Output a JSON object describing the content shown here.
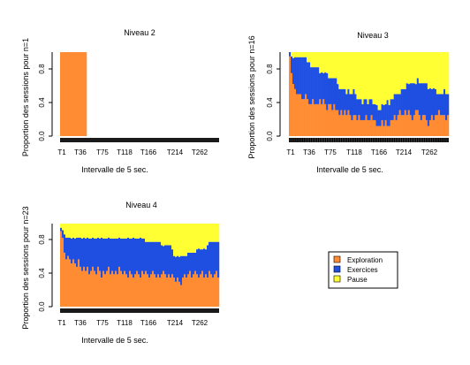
{
  "colors": {
    "exploration": "#FF8C33",
    "exercices": "#1F4FE0",
    "pause": "#FFFF33",
    "ticks": "#000000"
  },
  "legend": {
    "placement": "right-of-panel-4",
    "items": [
      {
        "label": "Exploration",
        "color": "#FF8C33"
      },
      {
        "label": "Exercices",
        "color": "#1F4FE0"
      },
      {
        "label": "Pause",
        "color": "#FFFF33"
      }
    ]
  },
  "chart_data": [
    {
      "type": "area",
      "title": "Niveau 2",
      "xlabel": "Intervalle de 5 sec.",
      "ylabel": "Proportion des sessions pour n=1",
      "xtick_labels": [
        "T1",
        "T36",
        "T75",
        "T118",
        "T166",
        "T214",
        "T262"
      ],
      "ytick_labels": [
        "0.0",
        "0.4",
        "0.8"
      ],
      "ylim": [
        0,
        1
      ],
      "n_intervals": 90,
      "series": [
        {
          "name": "Exploration",
          "values": [
            1,
            1,
            1,
            1,
            1,
            1,
            1,
            1,
            1,
            1,
            1,
            1,
            1,
            1,
            1,
            0,
            0,
            0,
            0,
            0,
            0,
            0,
            0,
            0,
            0,
            0,
            0,
            0,
            0,
            0,
            0,
            0,
            0,
            0,
            0,
            0,
            0,
            0,
            0,
            0,
            0,
            0,
            0,
            0,
            0,
            0,
            0,
            0,
            0,
            0,
            0,
            0,
            0,
            0,
            0,
            0,
            0,
            0,
            0,
            0,
            0,
            0,
            0,
            0,
            0,
            0,
            0,
            0,
            0,
            0,
            0,
            0,
            0,
            0,
            0,
            0,
            0,
            0,
            0,
            0,
            0,
            0,
            0,
            0,
            0,
            0,
            0,
            0,
            0,
            0
          ]
        },
        {
          "name": "Exercices",
          "values": [
            0,
            0,
            0,
            0,
            0,
            0,
            0,
            0,
            0,
            0,
            0,
            0,
            0,
            0,
            0,
            0,
            0,
            0,
            0,
            0,
            0,
            0,
            0,
            0,
            0,
            0,
            0,
            0,
            0,
            0,
            0,
            0,
            0,
            0,
            0,
            0,
            0,
            0,
            0,
            0,
            0,
            0,
            0,
            0,
            0,
            0,
            0,
            0,
            0,
            0,
            0,
            0,
            0,
            0,
            0,
            0,
            0,
            0,
            0,
            0,
            0,
            0,
            0,
            0,
            0,
            0,
            0,
            0,
            0,
            0,
            0,
            0,
            0,
            0,
            0,
            0,
            0,
            0,
            0,
            0,
            0,
            0,
            0,
            0,
            0,
            0,
            0,
            0,
            0,
            0
          ]
        },
        {
          "name": "Pause",
          "values": [
            0,
            0,
            0,
            0,
            0,
            0,
            0,
            0,
            0,
            0,
            0,
            0,
            0,
            0,
            0,
            0,
            0,
            0,
            0,
            0,
            0,
            0,
            0,
            0,
            0,
            0,
            0,
            0,
            0,
            0,
            0,
            0,
            0,
            0,
            0,
            0,
            0,
            0,
            0,
            0,
            0,
            0,
            0,
            0,
            0,
            0,
            0,
            0,
            0,
            0,
            0,
            0,
            0,
            0,
            0,
            0,
            0,
            0,
            0,
            0,
            0,
            0,
            0,
            0,
            0,
            0,
            0,
            0,
            0,
            0,
            0,
            0,
            0,
            0,
            0,
            0,
            0,
            0,
            0,
            0,
            0,
            0,
            0,
            0,
            0,
            0,
            0,
            0,
            0,
            0
          ]
        }
      ]
    },
    {
      "type": "area",
      "title": "Niveau 3",
      "xlabel": "Intervalle de 5 sec.",
      "ylabel": "Proportion des sessions pour n=16",
      "xtick_labels": [
        "T1",
        "T36",
        "T75",
        "T118",
        "T166",
        "T214",
        "T262"
      ],
      "ytick_labels": [
        "0.0",
        "0.4",
        "0.8"
      ],
      "ylim": [
        0,
        1
      ],
      "n_intervals": 90,
      "series": [
        {
          "name": "Exploration",
          "values": [
            0.95,
            0.75,
            0.62,
            0.56,
            0.5,
            0.5,
            0.5,
            0.44,
            0.44,
            0.5,
            0.44,
            0.38,
            0.38,
            0.44,
            0.38,
            0.38,
            0.38,
            0.44,
            0.38,
            0.44,
            0.38,
            0.31,
            0.38,
            0.38,
            0.31,
            0.38,
            0.31,
            0.31,
            0.25,
            0.31,
            0.25,
            0.31,
            0.25,
            0.31,
            0.25,
            0.19,
            0.25,
            0.25,
            0.19,
            0.25,
            0.19,
            0.19,
            0.19,
            0.25,
            0.19,
            0.19,
            0.25,
            0.19,
            0.19,
            0.12,
            0.12,
            0.12,
            0.19,
            0.12,
            0.19,
            0.12,
            0.12,
            0.19,
            0.19,
            0.25,
            0.19,
            0.25,
            0.31,
            0.25,
            0.25,
            0.31,
            0.25,
            0.31,
            0.25,
            0.19,
            0.25,
            0.31,
            0.31,
            0.25,
            0.19,
            0.25,
            0.25,
            0.19,
            0.12,
            0.19,
            0.25,
            0.19,
            0.25,
            0.25,
            0.31,
            0.25,
            0.25,
            0.25,
            0.19,
            0.25
          ]
        },
        {
          "name": "Exercices",
          "values": [
            0.05,
            0.2,
            0.31,
            0.38,
            0.44,
            0.44,
            0.44,
            0.5,
            0.5,
            0.44,
            0.44,
            0.5,
            0.44,
            0.38,
            0.44,
            0.44,
            0.44,
            0.31,
            0.38,
            0.31,
            0.38,
            0.44,
            0.31,
            0.31,
            0.38,
            0.31,
            0.38,
            0.31,
            0.31,
            0.25,
            0.31,
            0.25,
            0.25,
            0.25,
            0.25,
            0.31,
            0.31,
            0.25,
            0.25,
            0.19,
            0.25,
            0.19,
            0.25,
            0.19,
            0.19,
            0.25,
            0.19,
            0.19,
            0.19,
            0.25,
            0.19,
            0.19,
            0.19,
            0.25,
            0.19,
            0.31,
            0.25,
            0.25,
            0.25,
            0.25,
            0.31,
            0.25,
            0.19,
            0.31,
            0.31,
            0.25,
            0.38,
            0.31,
            0.38,
            0.44,
            0.38,
            0.31,
            0.38,
            0.38,
            0.44,
            0.38,
            0.38,
            0.44,
            0.44,
            0.38,
            0.31,
            0.38,
            0.31,
            0.25,
            0.19,
            0.25,
            0.25,
            0.31,
            0.31,
            0.25
          ]
        },
        {
          "name": "Pause",
          "values": [
            0,
            0.05,
            0.07,
            0.06,
            0.06,
            0.06,
            0.06,
            0.06,
            0.06,
            0.06,
            0.12,
            0.12,
            0.18,
            0.18,
            0.18,
            0.18,
            0.18,
            0.25,
            0.24,
            0.25,
            0.24,
            0.25,
            0.31,
            0.31,
            0.31,
            0.31,
            0.31,
            0.38,
            0.44,
            0.44,
            0.44,
            0.44,
            0.5,
            0.44,
            0.5,
            0.5,
            0.44,
            0.5,
            0.56,
            0.56,
            0.56,
            0.62,
            0.56,
            0.56,
            0.62,
            0.56,
            0.56,
            0.62,
            0.62,
            0.63,
            0.69,
            0.69,
            0.62,
            0.63,
            0.62,
            0.57,
            0.63,
            0.56,
            0.56,
            0.5,
            0.5,
            0.5,
            0.5,
            0.44,
            0.44,
            0.44,
            0.37,
            0.38,
            0.37,
            0.37,
            0.37,
            0.38,
            0.31,
            0.37,
            0.37,
            0.37,
            0.37,
            0.37,
            0.44,
            0.43,
            0.44,
            0.43,
            0.44,
            0.5,
            0.5,
            0.5,
            0.5,
            0.44,
            0.5,
            0.5
          ]
        }
      ]
    },
    {
      "type": "area",
      "title": "Niveau 4",
      "xlabel": "Intervalle de 5 sec.",
      "ylabel": "Proportion des sessions pour n=23",
      "xtick_labels": [
        "T1",
        "T36",
        "T75",
        "T118",
        "T166",
        "T214",
        "T262"
      ],
      "ytick_labels": [
        "0.0",
        "0.4",
        "0.8"
      ],
      "ylim": [
        0,
        1
      ],
      "n_intervals": 90,
      "series": [
        {
          "name": "Exploration",
          "values": [
            0.91,
            0.83,
            0.65,
            0.57,
            0.61,
            0.57,
            0.52,
            0.57,
            0.52,
            0.48,
            0.57,
            0.48,
            0.43,
            0.48,
            0.43,
            0.48,
            0.39,
            0.43,
            0.48,
            0.43,
            0.39,
            0.48,
            0.43,
            0.35,
            0.43,
            0.39,
            0.43,
            0.48,
            0.39,
            0.43,
            0.39,
            0.43,
            0.39,
            0.48,
            0.43,
            0.39,
            0.43,
            0.39,
            0.35,
            0.43,
            0.39,
            0.35,
            0.39,
            0.43,
            0.39,
            0.35,
            0.43,
            0.39,
            0.43,
            0.39,
            0.35,
            0.39,
            0.43,
            0.39,
            0.35,
            0.39,
            0.35,
            0.39,
            0.43,
            0.39,
            0.35,
            0.39,
            0.35,
            0.39,
            0.35,
            0.3,
            0.35,
            0.3,
            0.26,
            0.35,
            0.39,
            0.35,
            0.39,
            0.43,
            0.35,
            0.39,
            0.43,
            0.39,
            0.35,
            0.39,
            0.43,
            0.35,
            0.39,
            0.35,
            0.43,
            0.39,
            0.35,
            0.39,
            0.43,
            0.35
          ]
        },
        {
          "name": "Exercices",
          "values": [
            0.04,
            0.09,
            0.22,
            0.26,
            0.22,
            0.26,
            0.3,
            0.26,
            0.3,
            0.35,
            0.26,
            0.35,
            0.39,
            0.35,
            0.39,
            0.35,
            0.43,
            0.39,
            0.35,
            0.39,
            0.43,
            0.35,
            0.39,
            0.48,
            0.39,
            0.43,
            0.39,
            0.35,
            0.43,
            0.39,
            0.43,
            0.39,
            0.43,
            0.35,
            0.39,
            0.43,
            0.39,
            0.43,
            0.48,
            0.39,
            0.43,
            0.48,
            0.43,
            0.39,
            0.43,
            0.48,
            0.39,
            0.43,
            0.35,
            0.39,
            0.43,
            0.39,
            0.35,
            0.39,
            0.43,
            0.39,
            0.43,
            0.35,
            0.3,
            0.35,
            0.39,
            0.35,
            0.39,
            0.3,
            0.26,
            0.3,
            0.26,
            0.3,
            0.35,
            0.26,
            0.22,
            0.26,
            0.26,
            0.22,
            0.3,
            0.26,
            0.22,
            0.3,
            0.35,
            0.3,
            0.26,
            0.35,
            0.3,
            0.39,
            0.35,
            0.39,
            0.43,
            0.39,
            0.35,
            0.43
          ]
        },
        {
          "name": "Pause",
          "values": [
            0.05,
            0.08,
            0.13,
            0.17,
            0.17,
            0.17,
            0.18,
            0.17,
            0.18,
            0.17,
            0.17,
            0.17,
            0.18,
            0.17,
            0.18,
            0.17,
            0.18,
            0.18,
            0.17,
            0.18,
            0.18,
            0.17,
            0.18,
            0.17,
            0.18,
            0.18,
            0.18,
            0.17,
            0.18,
            0.18,
            0.18,
            0.18,
            0.18,
            0.17,
            0.18,
            0.18,
            0.18,
            0.18,
            0.17,
            0.18,
            0.18,
            0.17,
            0.18,
            0.18,
            0.18,
            0.17,
            0.18,
            0.18,
            0.22,
            0.22,
            0.22,
            0.22,
            0.22,
            0.22,
            0.22,
            0.22,
            0.22,
            0.26,
            0.27,
            0.26,
            0.26,
            0.26,
            0.26,
            0.31,
            0.39,
            0.4,
            0.39,
            0.4,
            0.39,
            0.39,
            0.39,
            0.39,
            0.35,
            0.35,
            0.35,
            0.35,
            0.35,
            0.31,
            0.3,
            0.31,
            0.31,
            0.3,
            0.31,
            0.26,
            0.22,
            0.22,
            0.22,
            0.22,
            0.22,
            0.22
          ]
        }
      ]
    }
  ]
}
